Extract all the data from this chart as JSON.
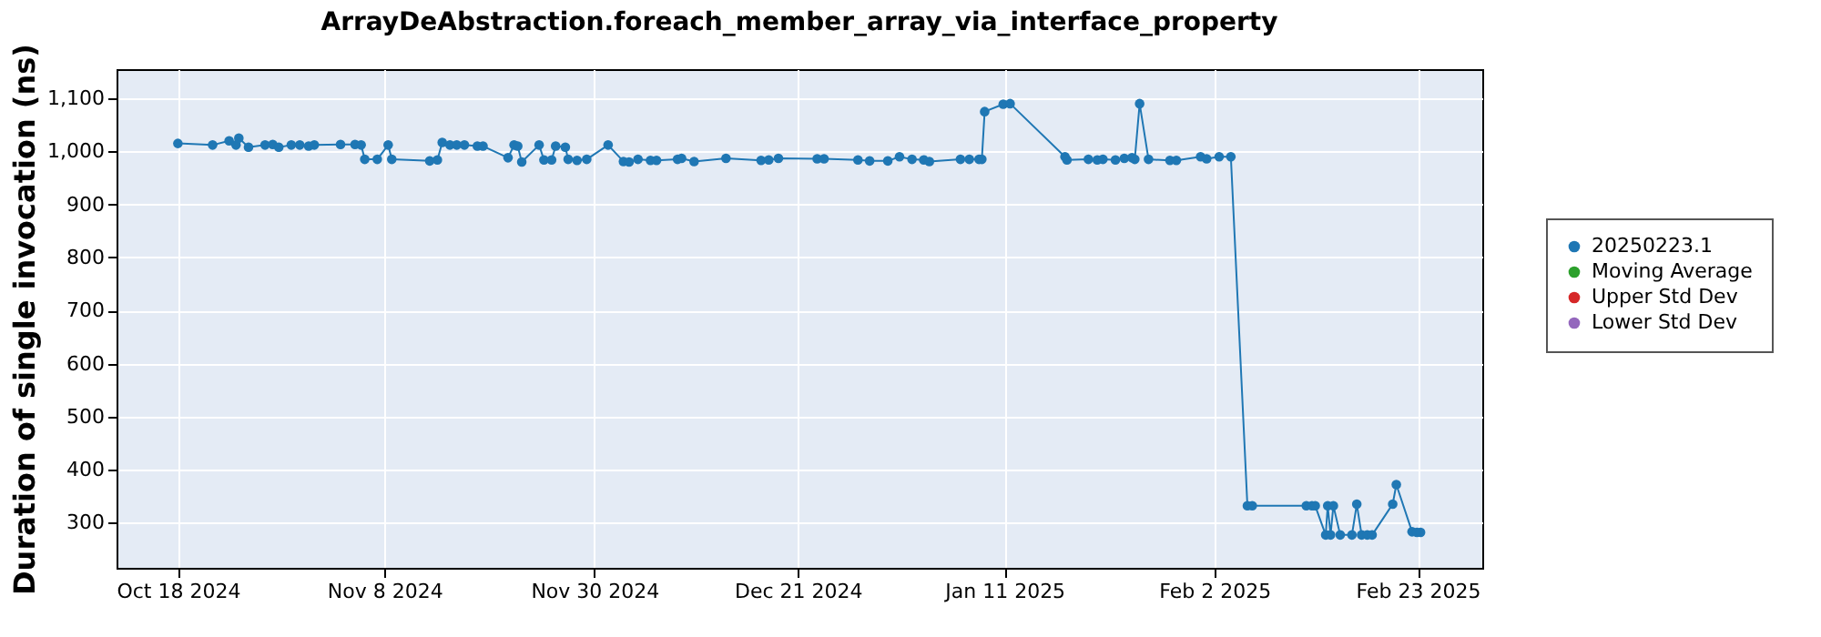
{
  "chart_data": {
    "type": "line",
    "title": "ArrayDeAbstraction.foreach_member_array_via_interface_property",
    "ylabel": "Duration of single invocation (ns)",
    "xlim": [
      "2024-10-11T16:00",
      "2025-03-01T16:00"
    ],
    "ylim": [
      215,
      1155
    ],
    "xticks": [
      {
        "value": "2024-10-18T00:00",
        "label": "Oct 18 2024"
      },
      {
        "value": "2024-11-08T08:00",
        "label": "Nov 8 2024"
      },
      {
        "value": "2024-11-30T00:00",
        "label": "Nov 30 2024"
      },
      {
        "value": "2024-12-21T00:00",
        "label": "Dec 21 2024"
      },
      {
        "value": "2025-01-11T08:00",
        "label": "Jan 11 2025"
      },
      {
        "value": "2025-02-02T00:00",
        "label": "Feb 2 2025"
      },
      {
        "value": "2025-02-23T00:00",
        "label": "Feb 23 2025"
      }
    ],
    "yticks": [
      300,
      400,
      500,
      600,
      700,
      800,
      900,
      {
        "value": 1000,
        "label": "1,000"
      },
      {
        "value": 1100,
        "label": "1,100"
      }
    ],
    "grid": true,
    "legend": "right",
    "marker": "circle",
    "series": [
      {
        "name": "20250223.1",
        "color": "#1f77b4",
        "x": [
          "2024-10-18T00:00",
          "2024-10-21T14:00",
          "2024-10-23T07:00",
          "2024-10-24T00:00",
          "2024-10-24T07:00",
          "2024-10-25T07:00",
          "2024-10-27T00:00",
          "2024-10-27T19:00",
          "2024-10-28T10:00",
          "2024-10-29T17:00",
          "2024-10-30T14:00",
          "2024-10-31T12:00",
          "2024-11-01T02:00",
          "2024-11-03T19:00",
          "2024-11-05T07:00",
          "2024-11-05T22:00",
          "2024-11-06T07:00",
          "2024-11-07T14:00",
          "2024-11-08T17:00",
          "2024-11-09T02:00",
          "2024-11-13T00:00",
          "2024-11-13T19:00",
          "2024-11-14T07:00",
          "2024-11-15T02:00",
          "2024-11-15T19:00",
          "2024-11-16T14:00",
          "2024-11-17T22:00",
          "2024-11-18T12:00",
          "2024-11-21T02:00",
          "2024-11-21T17:00",
          "2024-11-22T02:00",
          "2024-11-22T12:00",
          "2024-11-24T07:00",
          "2024-11-24T19:00",
          "2024-11-25T14:00",
          "2024-11-26T00:00",
          "2024-11-27T00:00",
          "2024-11-27T07:00",
          "2024-11-28T05:00",
          "2024-11-29T05:00",
          "2024-12-01T10:00",
          "2024-12-03T00:00",
          "2024-12-03T14:00",
          "2024-12-04T12:00",
          "2024-12-05T19:00",
          "2024-12-06T10:00",
          "2024-12-08T14:00",
          "2024-12-09T00:00",
          "2024-12-10T07:00",
          "2024-12-13T14:00",
          "2024-12-17T05:00",
          "2024-12-18T00:00",
          "2024-12-19T00:00",
          "2024-12-23T00:00",
          "2024-12-23T17:00",
          "2024-12-27T05:00",
          "2024-12-28T10:00",
          "2024-12-30T07:00",
          "2024-12-31T12:00",
          "2025-01-01T19:00",
          "2025-01-03T00:00",
          "2025-01-03T14:00",
          "2025-01-06T19:00",
          "2025-01-07T17:00",
          "2025-01-08T17:00",
          "2025-01-09T00:00",
          "2025-01-09T07:00",
          "2025-01-11T05:00",
          "2025-01-11T22:00",
          "2025-01-17T14:00",
          "2025-01-17T19:00",
          "2025-01-20T00:00",
          "2025-01-20T22:00",
          "2025-01-21T12:00",
          "2025-01-22T19:00",
          "2025-01-23T17:00",
          "2025-01-24T12:00",
          "2025-01-24T19:00",
          "2025-01-25T07:00",
          "2025-01-26T05:00",
          "2025-01-28T10:00",
          "2025-01-29T02:00",
          "2025-01-31T14:00",
          "2025-02-01T05:00",
          "2025-02-02T12:00",
          "2025-02-03T17:00",
          "2025-02-05T10:00",
          "2025-02-05T22:00",
          "2025-02-11T12:00",
          "2025-02-12T02:00",
          "2025-02-12T10:00",
          "2025-02-13T12:00",
          "2025-02-13T17:00",
          "2025-02-14T00:00",
          "2025-02-14T07:00",
          "2025-02-15T00:00",
          "2025-02-16T05:00",
          "2025-02-16T17:00",
          "2025-02-17T05:00",
          "2025-02-17T19:00",
          "2025-02-18T07:00",
          "2025-02-20T10:00",
          "2025-02-20T19:00",
          "2025-02-22T10:00",
          "2025-02-22T22:00",
          "2025-02-23T07:00"
        ],
        "values": [
          1015,
          1012,
          1020,
          1012,
          1025,
          1008,
          1012,
          1013,
          1008,
          1012,
          1012,
          1010,
          1012,
          1013,
          1013,
          1012,
          985,
          985,
          1012,
          985,
          982,
          984,
          1017,
          1012,
          1012,
          1012,
          1010,
          1010,
          988,
          1012,
          1010,
          980,
          1012,
          984,
          984,
          1010,
          1008,
          985,
          983,
          985,
          1012,
          981,
          980,
          985,
          983,
          983,
          985,
          987,
          981,
          987,
          983,
          984,
          987,
          986,
          986,
          984,
          982,
          982,
          990,
          985,
          984,
          981,
          985,
          985,
          985,
          985,
          1075,
          1089,
          1090,
          990,
          984,
          985,
          984,
          985,
          984,
          987,
          988,
          985,
          1090,
          985,
          983,
          983,
          990,
          986,
          990,
          990,
          332,
          332,
          332,
          332,
          332,
          277,
          332,
          277,
          332,
          277,
          277,
          335,
          277,
          277,
          277,
          335,
          372,
          283,
          282,
          282
        ]
      },
      {
        "name": "Moving Average",
        "color": "#2ca02c"
      },
      {
        "name": "Upper Std Dev",
        "color": "#d62728"
      },
      {
        "name": "Lower Std Dev",
        "color": "#9467bd"
      }
    ]
  }
}
